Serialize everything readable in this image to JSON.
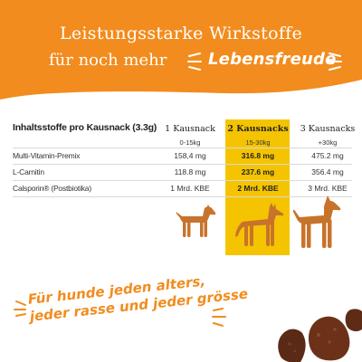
{
  "header": {
    "line1": "Leistungsstarke Wirkstoffe",
    "line2": "für noch mehr",
    "highlight": "Lebensfreude"
  },
  "table": {
    "title": "Inhaltsstoffe pro Kausnack (3.3g)",
    "columns": [
      {
        "label": "1 Kausnack",
        "sub": "0-15kg",
        "highlighted": false
      },
      {
        "label": "2 Kausnacks",
        "sub": "15-30kg",
        "highlighted": true
      },
      {
        "label": "3 Kausnacks",
        "sub": "+30kg",
        "highlighted": false
      }
    ],
    "rows": [
      {
        "label": "Multi-Vitamin-Premix",
        "values": [
          "158,4 mg",
          "316.8 mg",
          "475.2 mg"
        ]
      },
      {
        "label": "L-Carnitin",
        "values": [
          "118.8 mg",
          "237.6 mg",
          "356.4 mg"
        ]
      },
      {
        "label": "Calsporin® (Postbiotika)",
        "values": [
          "1 Mrd. KBE",
          "2 Mrd. KBE",
          "3 Mrd. KBE"
        ]
      }
    ]
  },
  "slogan": {
    "line1": "Für hunde jeden alters,",
    "line2": "jeder rasse und jeder grösse"
  },
  "colors": {
    "orange": "#f28c1e",
    "yellow": "#f5c400",
    "dog": "#c8732b"
  },
  "icons": [
    "small-dog-icon",
    "medium-dog-icon",
    "large-dog-icon",
    "sparkle-icon",
    "treat-icon"
  ]
}
